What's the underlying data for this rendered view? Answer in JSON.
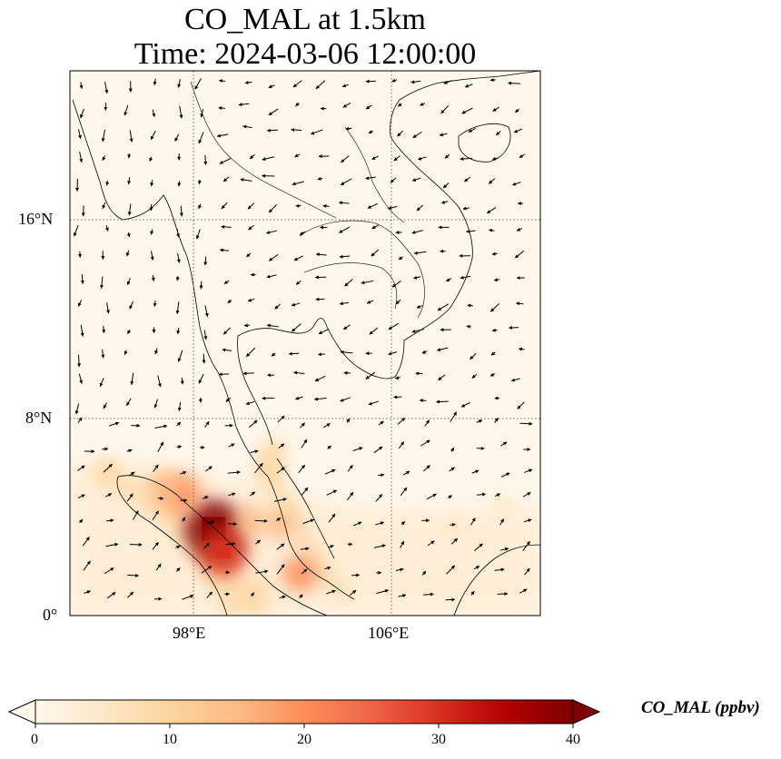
{
  "title": {
    "line1": "CO_MAL at 1.5km",
    "line2": "Time: 2024-03-06 12:00:00"
  },
  "map": {
    "lon_range": [
      93,
      112
    ],
    "lat_range": [
      0,
      22
    ],
    "lon_ticks": [
      {
        "value": 98,
        "label": "98°E"
      },
      {
        "value": 106,
        "label": "106°E"
      }
    ],
    "lat_ticks": [
      {
        "value": 16,
        "label": "16°N"
      },
      {
        "value": 8,
        "label": "8°N"
      },
      {
        "value": 0,
        "label": "0°"
      }
    ],
    "gridlines": "dotted"
  },
  "chart_data": {
    "type": "heatmap",
    "variable": "CO_MAL",
    "units": "ppbv",
    "colormap": "OrRd",
    "colors": [
      "#fff7ec",
      "#fee8c8",
      "#fdd49e",
      "#fdbb84",
      "#fc8d59",
      "#ef6548",
      "#d7301f",
      "#b30000",
      "#7f0000"
    ],
    "hotspots": [
      {
        "lon": 98.8,
        "lat": 3.5,
        "value": 40
      },
      {
        "lon": 99.2,
        "lat": 2.6,
        "value": 32
      },
      {
        "lon": 97.5,
        "lat": 4.9,
        "value": 22
      },
      {
        "lon": 96.8,
        "lat": 5.2,
        "value": 15
      },
      {
        "lon": 100.3,
        "lat": 3.8,
        "value": 14
      },
      {
        "lon": 101.5,
        "lat": 3.7,
        "value": 13
      },
      {
        "lon": 101.0,
        "lat": 5.8,
        "value": 11
      },
      {
        "lon": 102.3,
        "lat": 1.7,
        "value": 18
      },
      {
        "lon": 100.5,
        "lat": 1.0,
        "value": 10
      },
      {
        "lon": 94.5,
        "lat": 5.8,
        "value": 8
      },
      {
        "lon": 101.2,
        "lat": 6.6,
        "value": 9
      },
      {
        "lon": 108.5,
        "lat": 3.5,
        "value": 6
      },
      {
        "lon": 110.5,
        "lat": 4.5,
        "value": 5
      }
    ]
  },
  "colorbar": {
    "min": 0,
    "max": 40,
    "ticks": [
      "0",
      "10",
      "20",
      "30",
      "40"
    ],
    "label": "CO_MAL (ppbv)",
    "extend": "both"
  }
}
